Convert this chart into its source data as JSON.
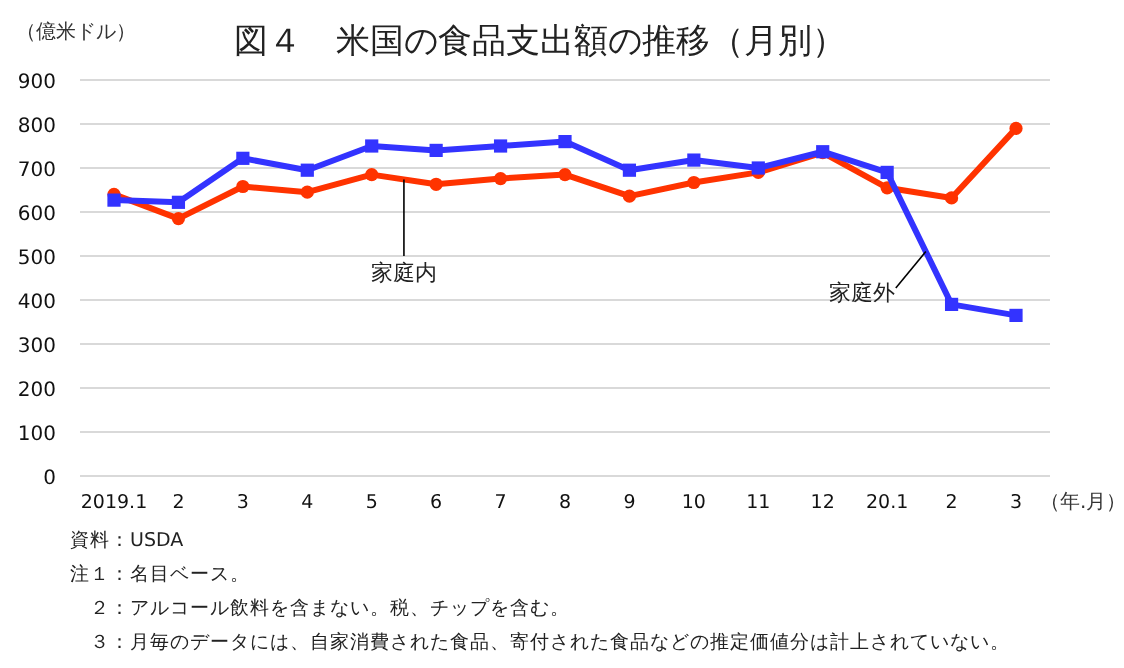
{
  "chart_data": {
    "type": "line",
    "title": "図４　米国の食品支出額の推移（月別）",
    "ylabel": "（億米ドル）",
    "xlabel": "（年.月）",
    "categories": [
      "2019.1",
      "2",
      "3",
      "4",
      "5",
      "6",
      "7",
      "8",
      "9",
      "10",
      "11",
      "12",
      "20.1",
      "2",
      "3"
    ],
    "series": [
      {
        "name": "家庭内",
        "color": "#ff3300",
        "marker": "circle",
        "values": [
          640,
          585,
          658,
          645,
          685,
          663,
          676,
          685,
          636,
          667,
          690,
          735,
          655,
          632,
          790
        ]
      },
      {
        "name": "家庭外",
        "color": "#3333ff",
        "marker": "square",
        "values": [
          627,
          622,
          722,
          695,
          750,
          740,
          750,
          760,
          695,
          718,
          700,
          737,
          690,
          390,
          365
        ]
      }
    ],
    "ylim": [
      0,
      900
    ],
    "yticks": [
      0,
      100,
      200,
      300,
      400,
      500,
      600,
      700,
      800,
      900
    ],
    "grid": "y",
    "annotations": [
      "資料：USDA",
      "注１：名目ベース。",
      "　２：アルコール飲料を含まない。税、チップを含む。",
      "　３：月毎のデータには、自家消費された食品、寄付された食品などの推定価値分は計上されていない。"
    ]
  }
}
